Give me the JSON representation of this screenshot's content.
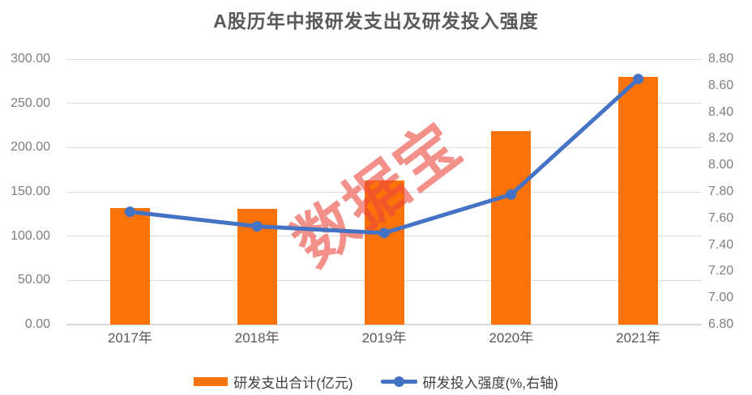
{
  "title": "A股历年中报研发支出及研发投入强度",
  "watermark": {
    "text": "数据宝"
  },
  "legend": {
    "items": [
      {
        "label": "研发支出合计(亿元)",
        "marker": "bar-swatch"
      },
      {
        "label": "研发投入强度(%,右轴)",
        "marker": "line-dot-swatch"
      }
    ]
  },
  "colors": {
    "bar": "#FA7308",
    "line": "#4472C4",
    "grid": "#DCDCDC",
    "axis_line": "#D9D9D9",
    "numeric_tick_label": "#7F7F7F",
    "category_label": "#595959",
    "title_text": "#595959",
    "legend_text": "#3F3F3F",
    "watermark": "rgba(237,70,60,0.6)"
  },
  "chart_data": {
    "type": "combo-bar-line",
    "title": "A股历年中报研发支出及研发投入强度",
    "categories": [
      "2017年",
      "2018年",
      "2019年",
      "2020年",
      "2021年"
    ],
    "series": [
      {
        "name": "研发支出合计(亿元)",
        "type": "bar",
        "axis": "left",
        "color": "#FA7308",
        "values": [
          131.3,
          130.4,
          162.4,
          218.5,
          279.5
        ]
      },
      {
        "name": "研发投入强度(%,右轴)",
        "type": "line",
        "axis": "right",
        "color": "#4472C4",
        "values": [
          7.65,
          7.54,
          7.49,
          7.78,
          8.65
        ]
      }
    ],
    "left_axis": {
      "min": 0,
      "max": 300,
      "step": 50,
      "decimals": 2
    },
    "right_axis": {
      "min": 6.8,
      "max": 8.8,
      "step": 0.2,
      "decimals": 2
    },
    "grid": true,
    "legend_position": "bottom",
    "watermark": "数据宝"
  }
}
